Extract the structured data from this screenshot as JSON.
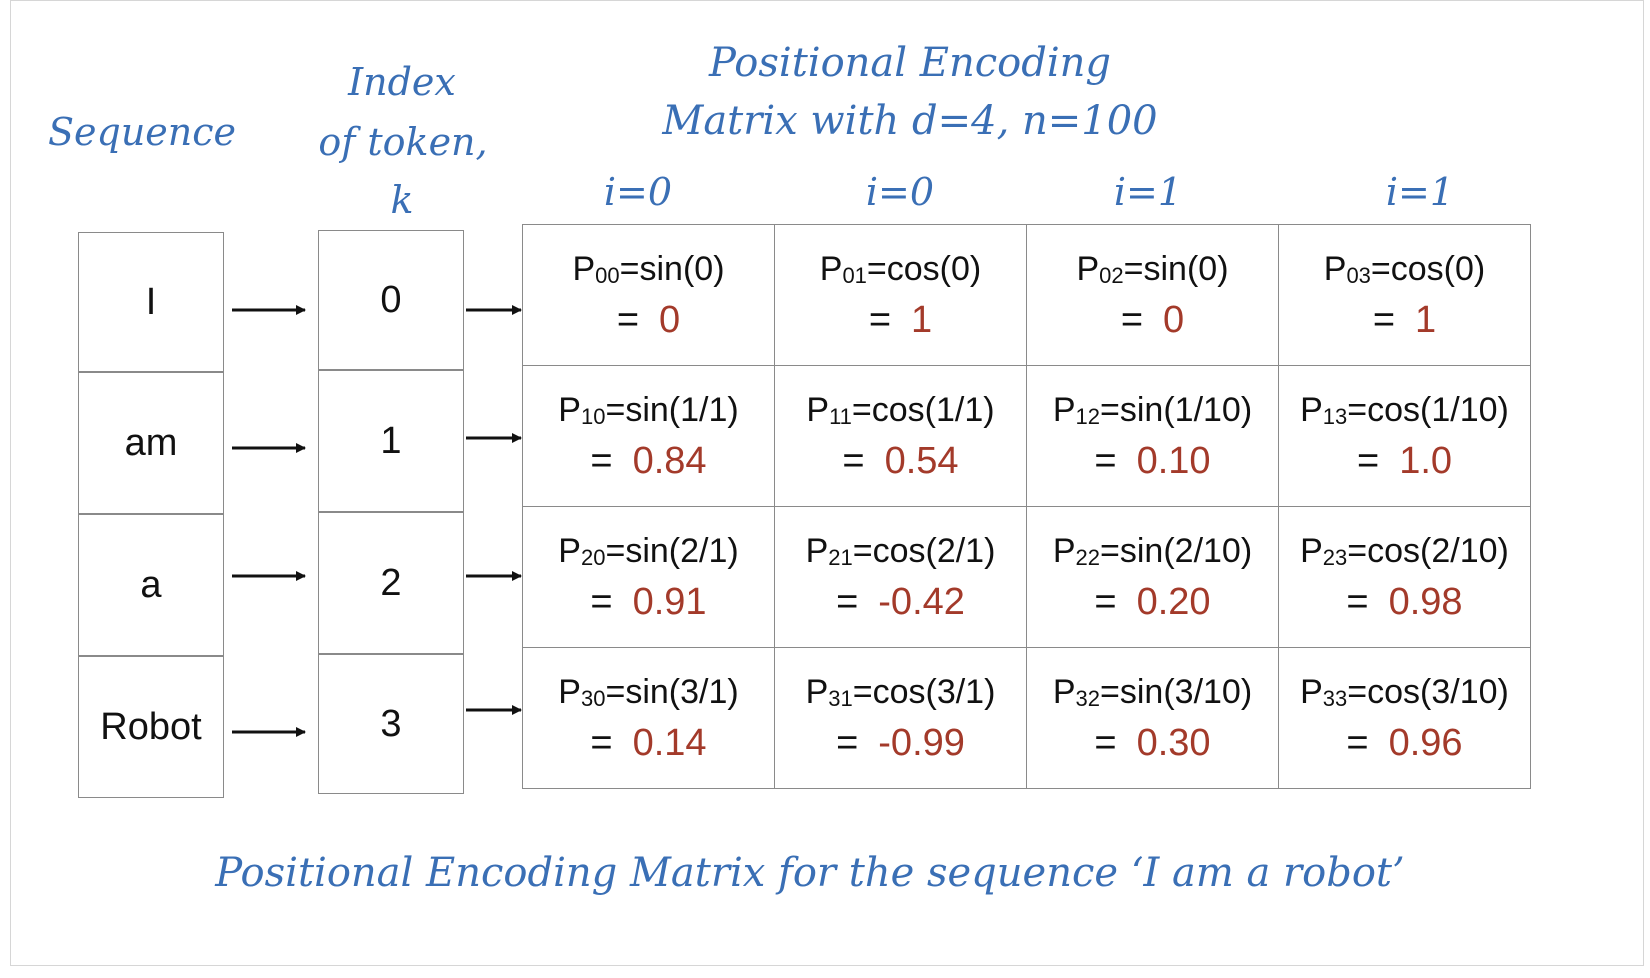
{
  "headers": {
    "sequence": "Sequence",
    "index_line1": "Index",
    "index_line2": "of token,",
    "index_line3": "k",
    "pe_line1": "Positional Encoding",
    "pe_line2": "Matrix with d=4, n=100"
  },
  "column_labels": [
    "i=0",
    "i=0",
    "i=1",
    "i=1"
  ],
  "tokens": [
    "I",
    "am",
    "a",
    "Robot"
  ],
  "indices": [
    "0",
    "1",
    "2",
    "3"
  ],
  "matrix": [
    [
      {
        "p": "P",
        "sub": "00",
        "expr": "=sin(0)",
        "eq": "=",
        "value": "0"
      },
      {
        "p": "P",
        "sub": "01",
        "expr": "=cos(0)",
        "eq": "=",
        "value": "1"
      },
      {
        "p": "P",
        "sub": "02",
        "expr": "=sin(0)",
        "eq": "=",
        "value": "0"
      },
      {
        "p": "P",
        "sub": "03",
        "expr": "=cos(0)",
        "eq": "=",
        "value": "1"
      }
    ],
    [
      {
        "p": "P",
        "sub": "10",
        "expr": "=sin(1/1)",
        "eq": "=",
        "value": "0.84"
      },
      {
        "p": "P",
        "sub": "11",
        "expr": "=cos(1/1)",
        "eq": "=",
        "value": "0.54"
      },
      {
        "p": "P",
        "sub": "12",
        "expr": "=sin(1/10)",
        "eq": "=",
        "value": "0.10"
      },
      {
        "p": "P",
        "sub": "13",
        "expr": "=cos(1/10)",
        "eq": "=",
        "value": "1.0"
      }
    ],
    [
      {
        "p": "P",
        "sub": "20",
        "expr": "=sin(2/1)",
        "eq": "=",
        "value": "0.91"
      },
      {
        "p": "P",
        "sub": "21",
        "expr": "=cos(2/1)",
        "eq": "=",
        "value": "-0.42"
      },
      {
        "p": "P",
        "sub": "22",
        "expr": "=sin(2/10)",
        "eq": "=",
        "value": "0.20"
      },
      {
        "p": "P",
        "sub": "23",
        "expr": "=cos(2/10)",
        "eq": "=",
        "value": "0.98"
      }
    ],
    [
      {
        "p": "P",
        "sub": "30",
        "expr": "=sin(3/1)",
        "eq": "=",
        "value": "0.14"
      },
      {
        "p": "P",
        "sub": "31",
        "expr": "=cos(3/1)",
        "eq": "=",
        "value": "-0.99"
      },
      {
        "p": "P",
        "sub": "32",
        "expr": "=sin(3/10)",
        "eq": "=",
        "value": "0.30"
      },
      {
        "p": "P",
        "sub": "33",
        "expr": "=cos(3/10)",
        "eq": "=",
        "value": "0.96"
      }
    ]
  ],
  "caption": "Positional Encoding Matrix for the sequence ‘I am a robot’",
  "colors": {
    "label_blue": "#3a6fb5",
    "value_red": "#a33a2a",
    "border_gray": "#8a8a8a"
  }
}
